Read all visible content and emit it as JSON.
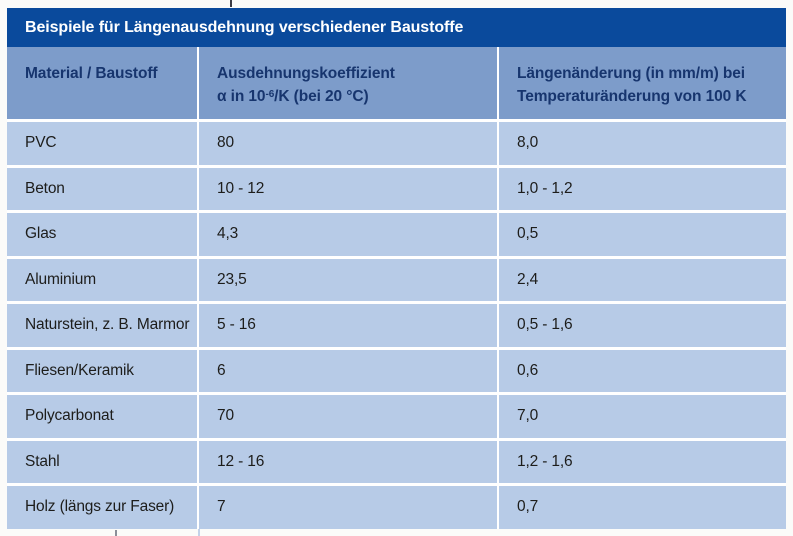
{
  "table": {
    "title": "Beispiele für Längenausdehnung verschiedener Baustoffe",
    "header": {
      "col1": "Material / Baustoff",
      "col2_line1": "Ausdehnungskoeffizient",
      "col2_line2_prefix": "α in 10",
      "col2_line2_sup": "-6",
      "col2_line2_suffix": "/K (bei 20 °C)",
      "col3_line1": "Längenänderung (in mm/m) bei",
      "col3_line2": "Temperaturänderung von 100 K"
    },
    "rows": [
      {
        "material": "PVC",
        "coefficient": "80",
        "change": "8,0"
      },
      {
        "material": "Beton",
        "coefficient": "10 - 12",
        "change": "1,0 - 1,2"
      },
      {
        "material": "Glas",
        "coefficient": "4,3",
        "change": "0,5"
      },
      {
        "material": "Aluminium",
        "coefficient": "23,5",
        "change": "2,4"
      },
      {
        "material": "Naturstein, z. B. Marmor",
        "coefficient": "5 - 16",
        "change": "0,5 - 1,6"
      },
      {
        "material": "Fliesen/Keramik",
        "coefficient": "6",
        "change": "0,6"
      },
      {
        "material": "Polycarbonat",
        "coefficient": "70",
        "change": "7,0"
      },
      {
        "material": "Stahl",
        "coefficient": "12 - 16",
        "change": "1,2 - 1,6"
      },
      {
        "material": "Holz (längs zur Faser)",
        "coefficient": "7",
        "change": "0,7"
      }
    ],
    "colors": {
      "page_bg": "#fbfbf9",
      "title_bg": "#0a4a9c",
      "title_text": "#ffffff",
      "header_bg": "#7d9cca",
      "header_text": "#17356e",
      "row_bg": "#b7cbe7",
      "row_text": "#1d1d1b",
      "divider": "#ffffff"
    }
  },
  "chart_data": {
    "type": "table",
    "title": "Beispiele für Längenausdehnung verschiedener Baustoffe",
    "columns": [
      "Material / Baustoff",
      "Ausdehnungskoeffizient α in 10⁻⁶/K (bei 20 °C)",
      "Längenänderung (in mm/m) bei Temperaturänderung von 100 K"
    ],
    "rows": [
      [
        "PVC",
        "80",
        "8,0"
      ],
      [
        "Beton",
        "10 - 12",
        "1,0 - 1,2"
      ],
      [
        "Glas",
        "4,3",
        "0,5"
      ],
      [
        "Aluminium",
        "23,5",
        "2,4"
      ],
      [
        "Naturstein, z. B. Marmor",
        "5 - 16",
        "0,5 - 1,6"
      ],
      [
        "Fliesen/Keramik",
        "6",
        "0,6"
      ],
      [
        "Polycarbonat",
        "70",
        "7,0"
      ],
      [
        "Stahl",
        "12 - 16",
        "1,2 - 1,6"
      ],
      [
        "Holz (längs zur Faser)",
        "7",
        "0,7"
      ]
    ]
  }
}
